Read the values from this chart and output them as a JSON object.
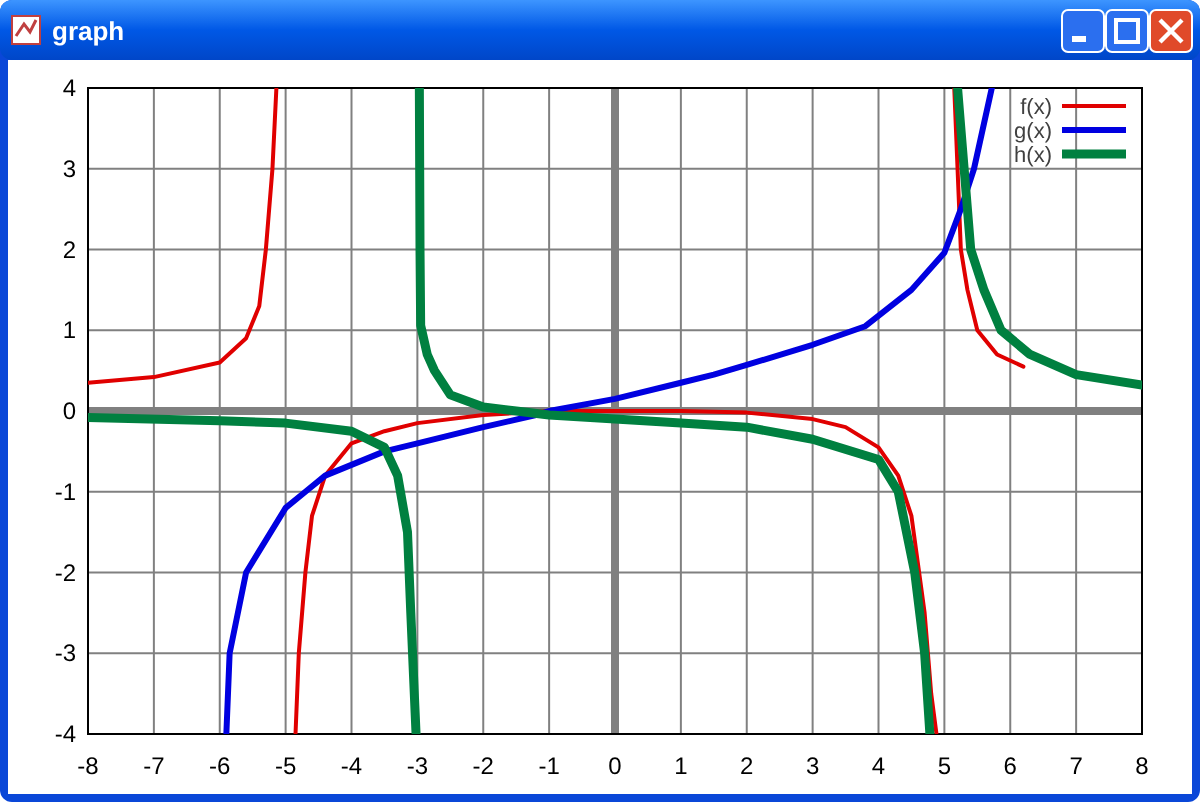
{
  "chart_data": {
    "type": "line",
    "title": "graph",
    "xlim": [
      -8,
      8
    ],
    "ylim": [
      -4,
      4
    ],
    "xticks": [
      -8,
      -7,
      -6,
      -5,
      -4,
      -3,
      -2,
      -1,
      0,
      1,
      2,
      3,
      4,
      5,
      6,
      7,
      8
    ],
    "yticks": [
      -4,
      -3,
      -2,
      -1,
      0,
      1,
      2,
      3,
      4
    ],
    "grid": true,
    "legend": "top right",
    "line_style": "solid",
    "series": [
      {
        "name": "f(x)",
        "color": "#e00000",
        "x": [
          -8,
          -7,
          -6,
          -5.6,
          -5.4,
          -5.3,
          -5.2,
          -5.14,
          -5,
          -4.85,
          -4.8,
          -4.7,
          -4.6,
          -4.4,
          -4,
          -3.5,
          -3,
          -2,
          -1,
          0,
          1,
          2,
          3,
          3.5,
          4,
          4.3,
          4.5,
          4.7,
          4.8,
          4.88,
          5,
          5.15,
          5.2,
          5.25,
          5.35,
          5.5,
          5.8,
          6.2
        ],
        "values": [
          0.35,
          0.42,
          0.6,
          0.9,
          1.3,
          2,
          3,
          4,
          null,
          -4,
          -3,
          -2,
          -1.3,
          -0.8,
          -0.4,
          -0.25,
          -0.15,
          -0.05,
          0,
          0,
          0,
          -0.02,
          -0.1,
          -0.2,
          -0.45,
          -0.8,
          -1.3,
          -2.5,
          -3.5,
          -4,
          null,
          4,
          3,
          2,
          1.5,
          1,
          0.7,
          0.55
        ]
      },
      {
        "name": "g(x)",
        "color": "#0000e0",
        "x": [
          -5.9,
          -5.85,
          -5.6,
          -5,
          -4.7,
          -4.4,
          -3.5,
          -3,
          -2,
          -1.2,
          -1,
          0,
          1,
          1.5,
          2,
          3,
          3.8,
          4.5,
          5,
          5.25,
          5.45,
          5.72
        ],
        "values": [
          -4,
          -3,
          -2,
          -1.2,
          -1,
          -0.8,
          -0.5,
          -0.4,
          -0.2,
          -0.05,
          0,
          0.15,
          0.35,
          0.45,
          0.57,
          0.82,
          1.05,
          1.5,
          1.96,
          2.5,
          3,
          4
        ]
      },
      {
        "name": "h(x)",
        "color": "#008040",
        "x": [
          -8,
          -6,
          -5,
          -4,
          -3.5,
          -3.3,
          -3.15,
          -3.1,
          -3.02,
          -3,
          -2.97,
          -2.96,
          -2.95,
          -2.85,
          -2.74,
          -2.5,
          -2,
          -1.5,
          -1,
          0,
          1,
          2,
          3,
          4,
          4.3,
          4.55,
          4.7,
          4.78,
          5,
          5.2,
          5.3,
          5.4,
          5.6,
          5.86,
          6.3,
          7,
          8
        ],
        "values": [
          -0.08,
          -0.12,
          -0.15,
          -0.25,
          -0.45,
          -0.8,
          -1.5,
          -2.5,
          -4,
          null,
          4,
          2,
          1.06,
          0.7,
          0.5,
          0.2,
          0.05,
          0,
          -0.05,
          -0.1,
          -0.15,
          -0.2,
          -0.35,
          -0.6,
          -1,
          -2,
          -3,
          -4,
          null,
          4,
          3,
          2,
          1.5,
          1,
          0.7,
          0.45,
          0.32
        ]
      }
    ]
  }
}
